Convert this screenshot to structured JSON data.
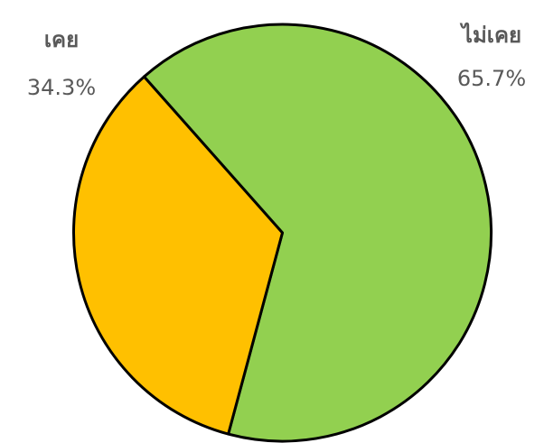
{
  "chart_data": {
    "type": "pie",
    "categories": [
      "เคย",
      "ไม่เคย"
    ],
    "values": [
      34.3,
      65.7
    ],
    "value_labels": [
      "34.3%",
      "65.7%"
    ],
    "colors": [
      "#FFC000",
      "#92D050"
    ]
  }
}
